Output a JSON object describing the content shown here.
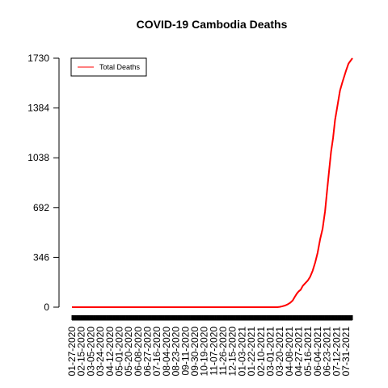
{
  "chart_data": {
    "type": "line",
    "title": "COVID-19 Cambodia Deaths",
    "xlabel": "",
    "ylabel": "",
    "ylim": [
      0,
      1730
    ],
    "yticks": [
      0,
      346,
      692,
      1038,
      1384,
      1730
    ],
    "x_start": "01-27-2020",
    "x_end": "08-13-2021",
    "xticks": [
      "01-27-2020",
      "02-15-2020",
      "03-05-2020",
      "03-24-2020",
      "04-12-2020",
      "05-01-2020",
      "05-20-2020",
      "06-08-2020",
      "06-27-2020",
      "07-16-2020",
      "08-04-2020",
      "08-23-2020",
      "09-11-2020",
      "09-30-2020",
      "10-19-2020",
      "11-07-2020",
      "11-26-2020",
      "12-15-2020",
      "01-03-2021",
      "01-22-2021",
      "02-10-2021",
      "03-01-2021",
      "03-20-2021",
      "04-08-2021",
      "04-27-2021",
      "05-16-2021",
      "06-04-2021",
      "06-23-2021",
      "07-12-2021",
      "07-31-2021"
    ],
    "series": [
      {
        "name": "Total Deaths",
        "color": "#ff0000",
        "points": [
          [
            "01-27-2020",
            0
          ],
          [
            "03-15-2021",
            0
          ],
          [
            "03-20-2021",
            2
          ],
          [
            "03-25-2021",
            6
          ],
          [
            "03-31-2021",
            12
          ],
          [
            "04-05-2021",
            20
          ],
          [
            "04-10-2021",
            31
          ],
          [
            "04-15-2021",
            47
          ],
          [
            "04-19-2021",
            71
          ],
          [
            "04-23-2021",
            93
          ],
          [
            "04-27-2021",
            110
          ],
          [
            "05-01-2021",
            121
          ],
          [
            "05-05-2021",
            147
          ],
          [
            "05-10-2021",
            166
          ],
          [
            "05-15-2021",
            184
          ],
          [
            "05-20-2021",
            211
          ],
          [
            "05-25-2021",
            253
          ],
          [
            "05-30-2021",
            309
          ],
          [
            "06-04-2021",
            378
          ],
          [
            "06-09-2021",
            471
          ],
          [
            "06-14-2021",
            545
          ],
          [
            "06-19-2021",
            667
          ],
          [
            "06-23-2021",
            809
          ],
          [
            "06-27-2021",
            945
          ],
          [
            "07-01-2021",
            1079
          ],
          [
            "07-05-2021",
            1174
          ],
          [
            "07-09-2021",
            1300
          ],
          [
            "07-14-2021",
            1402
          ],
          [
            "07-19-2021",
            1505
          ],
          [
            "07-24-2021",
            1565
          ],
          [
            "07-31-2021",
            1642
          ],
          [
            "08-05-2021",
            1692
          ],
          [
            "08-13-2021",
            1730
          ]
        ]
      }
    ],
    "legend": {
      "position": "top-left",
      "entries": [
        "Total Deaths"
      ]
    },
    "grid": false
  }
}
